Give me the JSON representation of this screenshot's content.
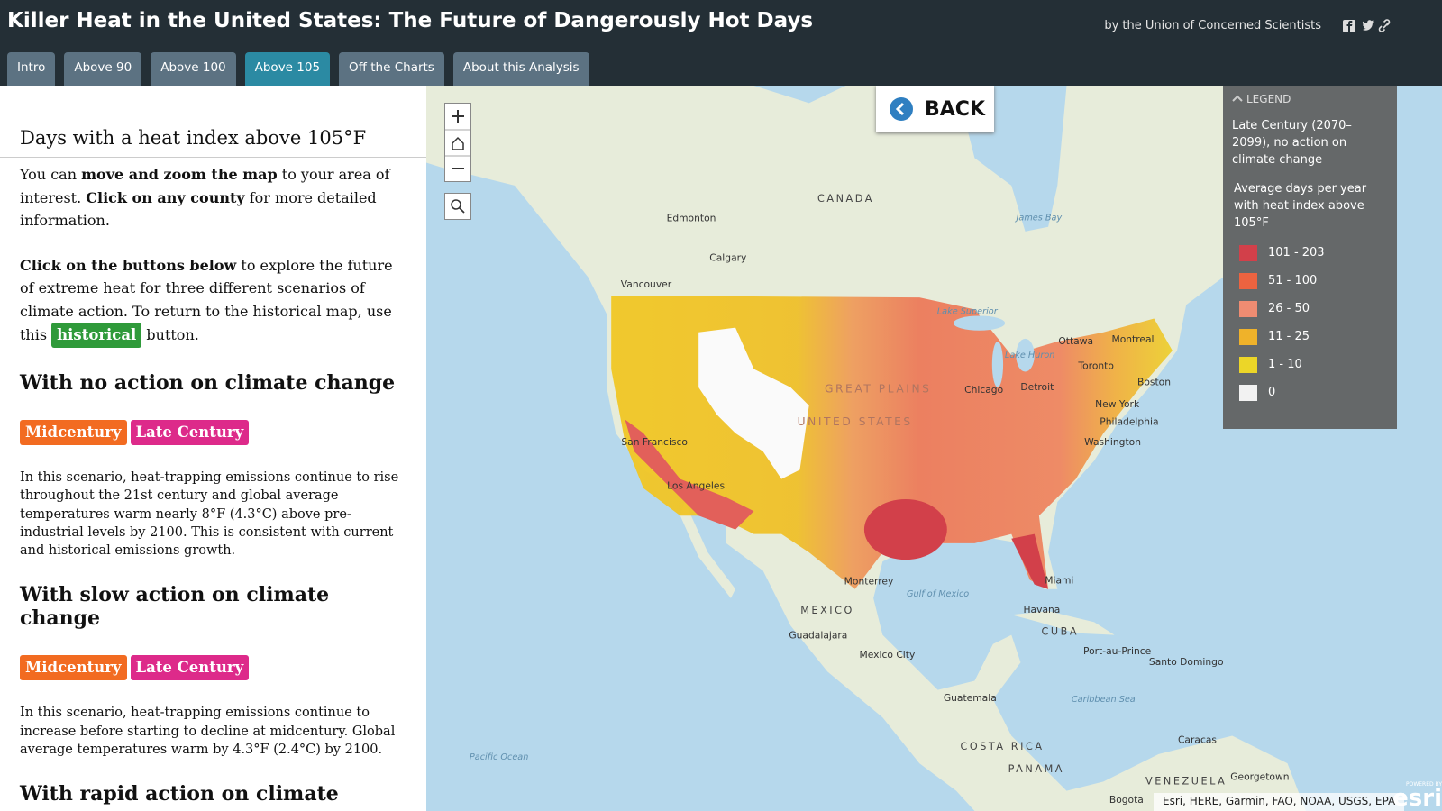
{
  "header": {
    "title": "Killer Heat in the United States: The Future of Dangerously Hot Days",
    "byline": "by the Union of Concerned Scientists"
  },
  "tabs": [
    "Intro",
    "Above 90",
    "Above 100",
    "Above 105",
    "Off the Charts",
    "About this Analysis"
  ],
  "sidebar": {
    "heading": "Days with a heat index above 105°F",
    "intro": [
      {
        "text": "You can "
      },
      {
        "text": "move and zoom the map",
        "bold": true
      },
      {
        "text": " to your area of interest. "
      },
      {
        "text": "Click on any county",
        "bold": true
      },
      {
        "text": " for more detailed information."
      }
    ],
    "instructions": [
      {
        "text": "Click on the buttons below",
        "bold": true
      },
      {
        "text": " to explore the future of extreme heat for three different scenarios of climate action. To return to the historical map, use this "
      },
      {
        "text": "historical",
        "button": true
      },
      {
        "text": " button."
      }
    ],
    "sections": [
      {
        "title": "With no action on climate change",
        "buttons": [
          "Midcentury",
          "Late Century"
        ],
        "text": "In this scenario, heat-trapping emissions continue to rise throughout the 21st century and global average temperatures warm nearly 8°F (4.3°C) above pre-industrial levels by 2100. This is consistent with current and historical emissions growth."
      },
      {
        "title": "With slow action on climate change",
        "buttons": [
          "Midcentury",
          "Late Century"
        ],
        "text": "In this scenario, heat-trapping emissions continue to increase before starting to decline at midcentury. Global average temperatures warm by 4.3°F (2.4°C) by 2100."
      },
      {
        "title": "With rapid action on climate"
      }
    ]
  },
  "map": {
    "back": "BACK",
    "legend": {
      "header": "LEGEND",
      "scenario": "Late Century (2070–2099), no action on climate change",
      "description": "Average days per year with heat index above 105°F",
      "items": [
        {
          "label": "101 - 203",
          "color": "#d2404a"
        },
        {
          "label": "51 - 100",
          "color": "#ec6340"
        },
        {
          "label": "26 - 50",
          "color": "#ef8c72"
        },
        {
          "label": "11 - 25",
          "color": "#efb22a"
        },
        {
          "label": "1 - 10",
          "color": "#ecd628"
        },
        {
          "label": "0",
          "color": "#f2f2f2"
        }
      ]
    },
    "labels": [
      "CANADA",
      "Edmonton",
      "Calgary",
      "Vancouver",
      "Ottawa",
      "Montreal",
      "Toronto",
      "Boston",
      "Detroit",
      "Chicago",
      "New York",
      "Philadelphia",
      "Washington",
      "GREAT PLAINS",
      "UNITED STATES",
      "San Francisco",
      "Los Angeles",
      "Monterrey",
      "MEXICO",
      "Guadalajara",
      "Mexico City",
      "Miami",
      "Havana",
      "CUBA",
      "Gulf of Mexico",
      "Port-au-Prince",
      "Santo Domingo",
      "Caribbean Sea",
      "Guatemala",
      "COSTA RICA",
      "PANAMA",
      "Caracas",
      "VENEZUELA",
      "Georgetown",
      "Bogota",
      "Pacific Ocean",
      "James Bay",
      "Lake Superior",
      "Lake Huron"
    ],
    "attribution": "Esri, HERE, Garmin, FAO, NOAA, USGS, EPA",
    "powered_by": "POWERED BY",
    "logo": "esri"
  }
}
